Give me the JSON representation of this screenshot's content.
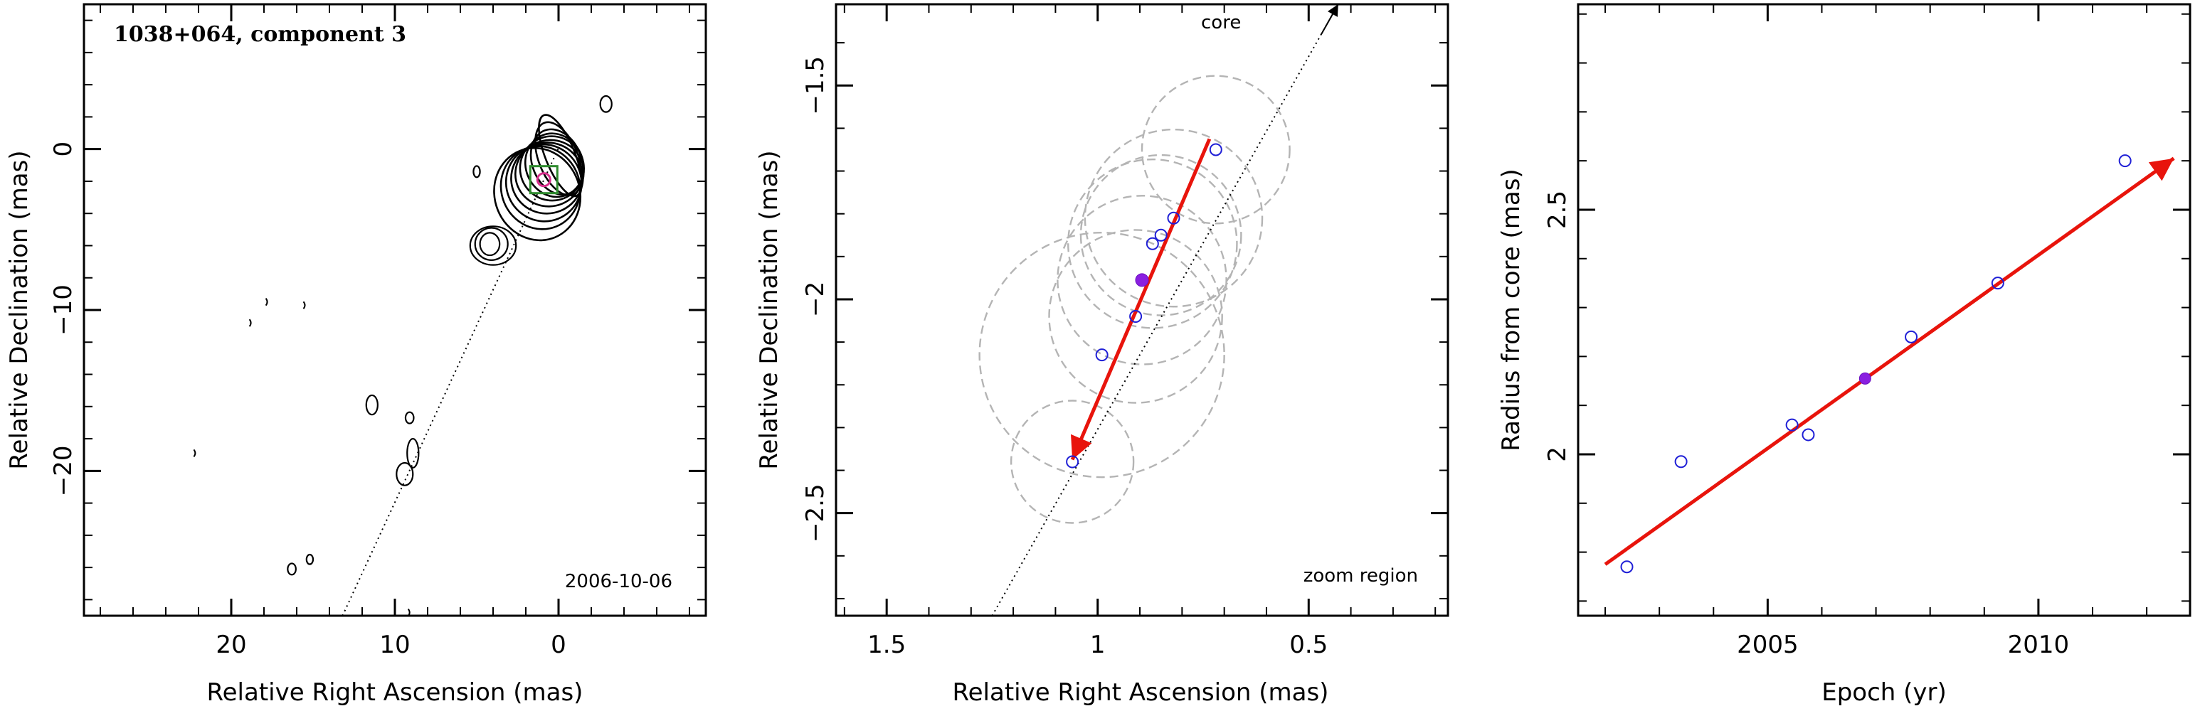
{
  "chart_data": [
    {
      "type": "contour",
      "title": "1038+064, component 3",
      "xlabel": "Relative Right Ascension (mas)",
      "ylabel": "Relative Declination (mas)",
      "xlim": [
        29,
        -9
      ],
      "ylim": [
        -29,
        9
      ],
      "xticks": [
        20,
        10,
        0
      ],
      "xtick_labels": [
        "20",
        "10",
        "0"
      ],
      "yticks": [
        0,
        -10,
        -20
      ],
      "ytick_labels": [
        "0",
        "−10",
        "−20"
      ],
      "annotation": "2006-10-06",
      "jet_axis_line": [
        [
          13.2,
          -29
        ],
        [
          -0.2,
          0.5
        ]
      ],
      "core_contours": [
        {
          "x": -0.1,
          "y": -0.4,
          "rx": 0.9,
          "ry": 2.7
        },
        {
          "x": 0.0,
          "y": -0.6,
          "rx": 1.2,
          "ry": 2.4
        },
        {
          "x": 0.1,
          "y": -0.8,
          "rx": 1.5,
          "ry": 2.1
        },
        {
          "x": 0.25,
          "y": -1.0,
          "rx": 1.75,
          "ry": 2.0
        },
        {
          "x": 0.4,
          "y": -1.2,
          "rx": 1.95,
          "ry": 2.0
        },
        {
          "x": 0.55,
          "y": -1.5,
          "rx": 2.1,
          "ry": 2.05
        },
        {
          "x": 0.7,
          "y": -1.8,
          "rx": 2.2,
          "ry": 2.2
        },
        {
          "x": 0.9,
          "y": -2.1,
          "rx": 2.3,
          "ry": 2.4
        },
        {
          "x": 1.1,
          "y": -2.4,
          "rx": 2.4,
          "ry": 2.6
        },
        {
          "x": 1.3,
          "y": -2.8,
          "rx": 2.6,
          "ry": 2.9
        }
      ],
      "blobs": [
        {
          "x": 4.2,
          "y": -5.9,
          "rx": 0.6,
          "ry": 0.7
        },
        {
          "x": 4.1,
          "y": -5.9,
          "rx": 1.0,
          "ry": 1.0
        },
        {
          "x": 4.0,
          "y": -6.0,
          "rx": 1.4,
          "ry": 1.2
        },
        {
          "x": -2.9,
          "y": 2.8,
          "rx": 0.35,
          "ry": 0.5
        },
        {
          "x": 11.4,
          "y": -15.9,
          "rx": 0.35,
          "ry": 0.6
        },
        {
          "x": 9.1,
          "y": -16.7,
          "rx": 0.25,
          "ry": 0.35
        },
        {
          "x": 16.3,
          "y": -26.1,
          "rx": 0.25,
          "ry": 0.35
        },
        {
          "x": 15.2,
          "y": -25.5,
          "rx": 0.2,
          "ry": 0.3
        },
        {
          "x": 5.0,
          "y": -1.4,
          "rx": 0.2,
          "ry": 0.35
        },
        {
          "x": 9.4,
          "y": -20.2,
          "rx": 0.5,
          "ry": 0.7
        },
        {
          "x": 8.9,
          "y": -18.9,
          "rx": 0.35,
          "ry": 0.9
        }
      ],
      "specks": [
        {
          "x": 17.8,
          "y": -9.5
        },
        {
          "x": 15.5,
          "y": -9.7
        },
        {
          "x": 18.8,
          "y": -10.8
        },
        {
          "x": 22.2,
          "y": -18.9
        },
        {
          "x": 9.1,
          "y": -28.8
        }
      ],
      "component_marker": {
        "x": 0.9,
        "y": -1.9
      }
    },
    {
      "type": "scatter",
      "xlabel": "Relative Right Ascension (mas)",
      "ylabel": "Relative Declination (mas)",
      "xlim": [
        1.62,
        0.17
      ],
      "ylim": [
        -2.74,
        -1.31
      ],
      "xticks": [
        1.5,
        1,
        0.5
      ],
      "xtick_labels": [
        "1.5",
        "1",
        "0.5"
      ],
      "yticks": [
        -1.5,
        -2,
        -2.5
      ],
      "ytick_labels": [
        "−1.5",
        "−2",
        "−2.5"
      ],
      "annotation_core": "core",
      "annotation_zoom": "zoom region",
      "jet_axis_line": [
        [
          1.25,
          -2.74
        ],
        [
          0.43,
          -1.31
        ]
      ],
      "core_arrow": [
        [
          0.47,
          -1.38
        ],
        [
          0.43,
          -1.31
        ]
      ],
      "velocity_arrow": [
        [
          0.735,
          -1.625
        ],
        [
          1.06,
          -2.375
        ]
      ],
      "points": [
        {
          "x": 0.72,
          "y": -1.65
        },
        {
          "x": 0.82,
          "y": -1.81
        },
        {
          "x": 0.85,
          "y": -1.85
        },
        {
          "x": 0.87,
          "y": -1.87
        },
        {
          "x": 0.91,
          "y": -2.04
        },
        {
          "x": 0.99,
          "y": -2.13
        },
        {
          "x": 1.06,
          "y": -2.38
        }
      ],
      "highlight_point": {
        "x": 0.895,
        "y": -1.955
      },
      "error_circles": [
        {
          "x": 0.72,
          "y": -1.65,
          "r": 0.175
        },
        {
          "x": 0.82,
          "y": -1.81,
          "r": 0.21
        },
        {
          "x": 0.85,
          "y": -1.85,
          "r": 0.19
        },
        {
          "x": 0.87,
          "y": -1.87,
          "r": 0.2
        },
        {
          "x": 0.895,
          "y": -1.955,
          "r": 0.2
        },
        {
          "x": 0.91,
          "y": -2.04,
          "r": 0.205
        },
        {
          "x": 0.99,
          "y": -2.13,
          "r": 0.29
        },
        {
          "x": 1.06,
          "y": -2.38,
          "r": 0.145
        }
      ]
    },
    {
      "type": "scatter",
      "xlabel": "Epoch (yr)",
      "ylabel": "Radius from core (mas)",
      "xlim": [
        2001.5,
        2012.8
      ],
      "ylim": [
        1.67,
        2.92
      ],
      "xticks": [
        2005,
        2010
      ],
      "xtick_labels": [
        "2005",
        "2010"
      ],
      "yticks": [
        2,
        2.5
      ],
      "ytick_labels": [
        "2",
        "2.5"
      ],
      "fit_arrow": [
        [
          2002.0,
          1.775
        ],
        [
          2012.5,
          2.605
        ]
      ],
      "points": [
        {
          "x": 2002.4,
          "y": 1.77
        },
        {
          "x": 2003.4,
          "y": 1.985
        },
        {
          "x": 2005.45,
          "y": 2.06
        },
        {
          "x": 2005.75,
          "y": 2.04
        },
        {
          "x": 2007.65,
          "y": 2.24
        },
        {
          "x": 2009.25,
          "y": 2.35
        },
        {
          "x": 2011.6,
          "y": 2.6
        }
      ],
      "highlight_point": {
        "x": 2006.8,
        "y": 2.155
      }
    }
  ]
}
